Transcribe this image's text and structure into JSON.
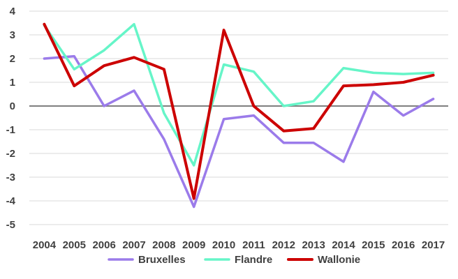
{
  "chart_data": {
    "type": "line",
    "title": "",
    "xlabel": "",
    "ylabel": "",
    "x": [
      "2004",
      "2005",
      "2006",
      "2007",
      "2008",
      "2009",
      "2010",
      "2011",
      "2012",
      "2013",
      "2014",
      "2015",
      "2016",
      "2017"
    ],
    "ylim": [
      -5,
      4
    ],
    "yticks": [
      -5,
      -4,
      -3,
      -2,
      -1,
      0,
      1,
      2,
      3,
      4
    ],
    "grid": true,
    "legend": "bottom",
    "series": [
      {
        "name": "Bruxelles",
        "color": "#9B7BEA",
        "values": [
          2.0,
          2.1,
          0.0,
          0.65,
          -1.4,
          -4.25,
          -0.55,
          -0.4,
          -1.55,
          -1.55,
          -2.35,
          0.6,
          -0.4,
          0.3
        ]
      },
      {
        "name": "Flandre",
        "color": "#66F5C8",
        "values": [
          3.4,
          1.55,
          2.35,
          3.45,
          -0.3,
          -2.5,
          1.75,
          1.45,
          0.0,
          0.2,
          1.6,
          1.4,
          1.35,
          1.4
        ]
      },
      {
        "name": "Wallonie",
        "color": "#CC0000",
        "values": [
          3.45,
          0.85,
          1.7,
          2.05,
          1.55,
          -3.9,
          3.2,
          0.0,
          -1.05,
          -0.95,
          0.85,
          0.9,
          1.0,
          1.3
        ]
      }
    ]
  }
}
